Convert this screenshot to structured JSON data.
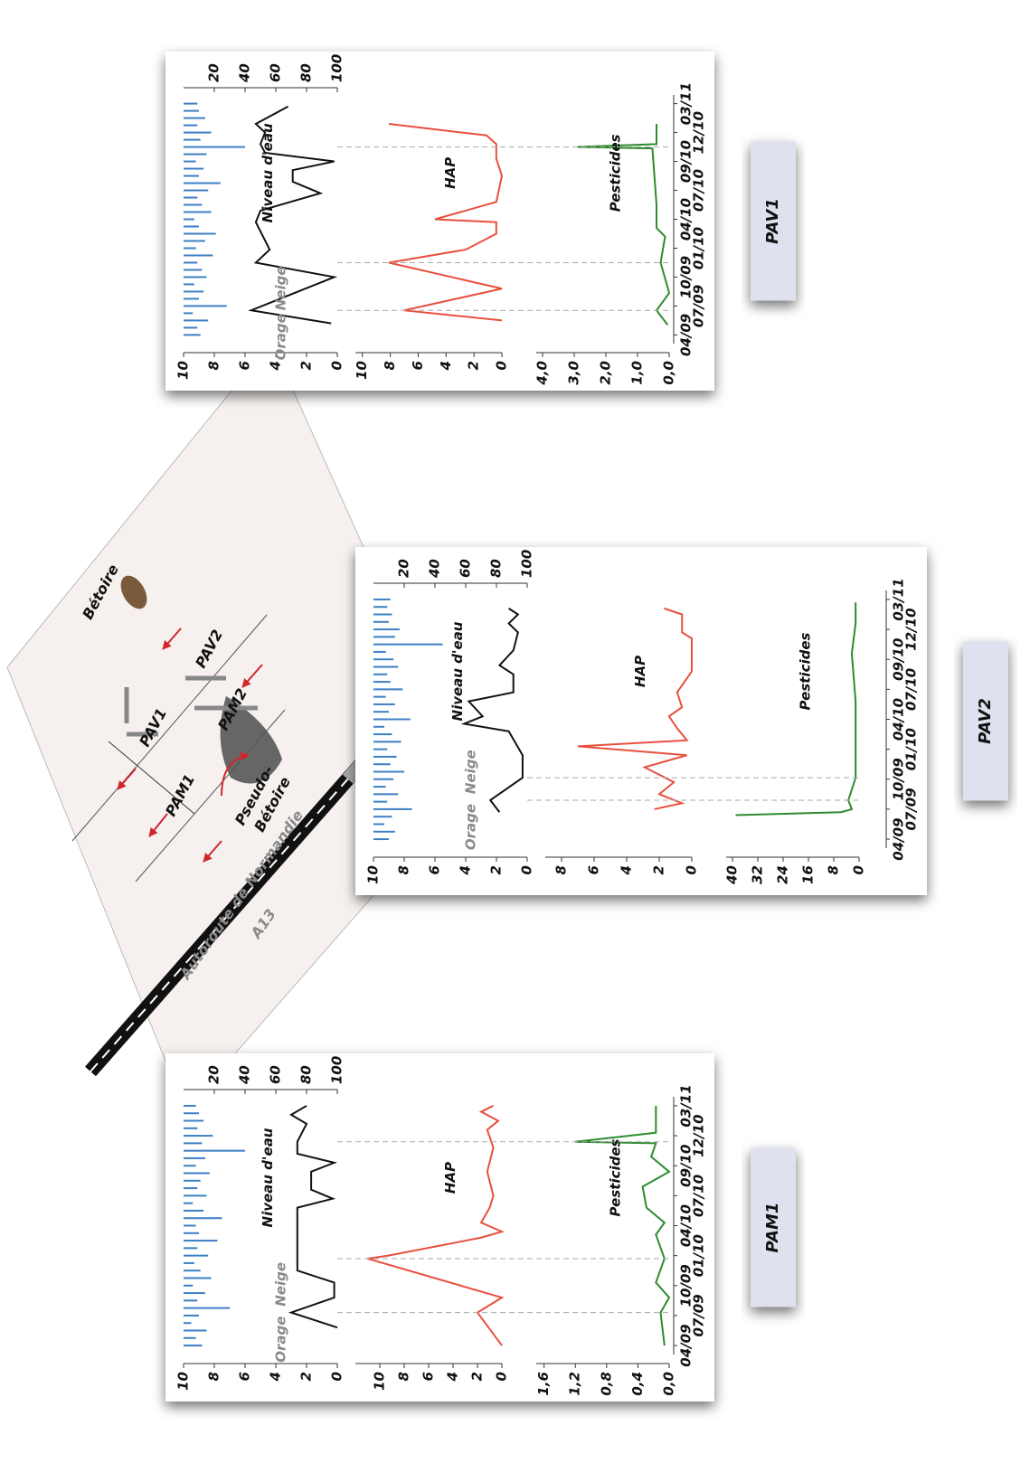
{
  "diagram": {
    "labels": [
      "Bétoire",
      "PAV1",
      "PAV2",
      "PAM1",
      "PAM2",
      "Pseudo-",
      "Bétoire",
      "Autoroute de Normandie",
      "A13"
    ]
  },
  "chart_data": [
    {
      "type": "line",
      "title": "PAM1",
      "xlim": [
        -0.3,
        8.3
      ],
      "xticks": [
        {
          "value": 0,
          "label": "04/09"
        },
        {
          "value": 1,
          "label": "07/09"
        },
        {
          "value": 2,
          "label": "10/09"
        },
        {
          "value": 3,
          "label": "01/10"
        },
        {
          "value": 4,
          "label": "04/10"
        },
        {
          "value": 5,
          "label": "07/10"
        },
        {
          "value": 6,
          "label": "09/10"
        },
        {
          "value": 7,
          "label": "12/10"
        },
        {
          "value": 8,
          "label": "03/11"
        }
      ],
      "precipitation": {
        "color": "#3d7fc4",
        "ylim": [
          0,
          100
        ],
        "yticks": [
          20,
          40,
          60,
          80,
          100
        ],
        "x": [
          0,
          0.25,
          0.5,
          0.75,
          1,
          1.25,
          1.5,
          1.75,
          2,
          2.25,
          2.5,
          2.75,
          3,
          3.25,
          3.5,
          3.75,
          4,
          4.25,
          4.5,
          4.75,
          5,
          5.25,
          5.5,
          5.75,
          6,
          6.25,
          6.5,
          6.75,
          7,
          7.25,
          7.5,
          7.75,
          8
        ],
        "values": [
          12,
          8,
          15,
          5,
          10,
          30,
          9,
          14,
          6,
          18,
          11,
          7,
          16,
          9,
          22,
          10,
          8,
          25,
          13,
          6,
          15,
          9,
          11,
          17,
          8,
          14,
          40,
          12,
          19,
          9,
          13,
          10,
          8
        ]
      },
      "series": [
        {
          "name": "Niveau d'eau",
          "color": "#111111",
          "ylim": [
            0,
            10
          ],
          "yticks": [
            0,
            2,
            4,
            6,
            8,
            10
          ],
          "x": [
            0.6,
            1.1,
            1.6,
            2.1,
            2.5,
            3.3,
            4.6,
            4.9,
            5.2,
            5.8,
            6.1,
            6.4,
            6.8,
            7.4,
            7.7,
            8.0
          ],
          "values": [
            0,
            3,
            0.2,
            0.2,
            2.6,
            2.6,
            2.6,
            0.3,
            1.7,
            1.7,
            0.2,
            2.6,
            2.6,
            2,
            3,
            2
          ]
        },
        {
          "name": "HAP",
          "color": "#e8503f",
          "ylim": [
            0,
            12
          ],
          "yticks": [
            0,
            2,
            4,
            6,
            8,
            10
          ],
          "x": [
            0,
            1.1,
            1.6,
            2.9,
            3.0,
            3.6,
            3.8,
            4.1,
            4.6,
            5.0,
            5.8,
            6.6,
            7.2,
            7.5,
            7.8,
            8.0
          ],
          "values": [
            0,
            2,
            0,
            11,
            9.3,
            1.7,
            0,
            1.7,
            1,
            0.7,
            1.2,
            0.7,
            1.2,
            0.3,
            1.7,
            0.7
          ]
        },
        {
          "name": "Pesticides",
          "color": "#2e8b2e",
          "ylim": [
            0,
            1.7
          ],
          "yticks": [
            {
              "value": 0,
              "label": "0,0"
            },
            {
              "value": 0.4,
              "label": "0,4"
            },
            {
              "value": 0.8,
              "label": "0,8"
            },
            {
              "value": 1.2,
              "label": "1,2"
            },
            {
              "value": 1.6,
              "label": "1,6"
            }
          ],
          "x": [
            0,
            1.1,
            1.6,
            2.1,
            2.9,
            3.7,
            4.1,
            4.6,
            5.3,
            5.8,
            6.3,
            6.75,
            6.8,
            7.1,
            8.0
          ],
          "values": [
            0.06,
            0.11,
            0,
            0.17,
            0.06,
            0.17,
            0.06,
            0.29,
            0.34,
            0,
            0.23,
            0.17,
            1.2,
            0.17,
            0.17
          ]
        }
      ],
      "event_lines": [
        1.1,
        2.9,
        6.8
      ],
      "annotations": [
        {
          "text": "Orage",
          "x": 1.1
        },
        {
          "text": "Neige",
          "x": 2.9
        }
      ]
    },
    {
      "type": "line",
      "title": "PAV2",
      "xlim": [
        -0.3,
        8.3
      ],
      "xticks": [
        {
          "value": 0,
          "label": "04/09"
        },
        {
          "value": 1,
          "label": "07/09"
        },
        {
          "value": 2,
          "label": "10/09"
        },
        {
          "value": 3,
          "label": "01/10"
        },
        {
          "value": 4,
          "label": "04/10"
        },
        {
          "value": 5,
          "label": "07/10"
        },
        {
          "value": 6,
          "label": "09/10"
        },
        {
          "value": 7,
          "label": "12/10"
        },
        {
          "value": 8,
          "label": "03/11"
        }
      ],
      "precipitation": {
        "color": "#3d7fc4",
        "ylim": [
          0,
          100
        ],
        "yticks": [
          20,
          40,
          60,
          80,
          100
        ],
        "x": [
          0,
          0.25,
          0.5,
          0.75,
          1,
          1.25,
          1.5,
          1.75,
          2,
          2.25,
          2.5,
          2.75,
          3,
          3.25,
          3.5,
          3.75,
          4,
          4.25,
          4.5,
          4.75,
          5,
          5.25,
          5.5,
          5.75,
          6,
          6.25,
          6.5,
          6.75,
          7,
          7.25,
          7.5,
          7.75,
          8
        ],
        "values": [
          10,
          14,
          7,
          12,
          25,
          9,
          16,
          8,
          13,
          20,
          11,
          15,
          9,
          18,
          12,
          7,
          24,
          10,
          14,
          8,
          19,
          11,
          9,
          16,
          13,
          8,
          45,
          14,
          17,
          10,
          12,
          9,
          11
        ]
      },
      "series": [
        {
          "name": "Niveau d'eau",
          "color": "#111111",
          "ylim": [
            0,
            10
          ],
          "yticks": [
            0,
            2,
            4,
            6,
            8,
            10
          ],
          "x": [
            0.9,
            1.3,
            2.05,
            2.8,
            3.6,
            3.85,
            4.1,
            4.6,
            4.9,
            5.5,
            5.8,
            6.3,
            6.9,
            7.2,
            7.5,
            7.7
          ],
          "values": [
            1.8,
            2.4,
            0.3,
            0.3,
            1.2,
            4.1,
            2.9,
            3.8,
            0.9,
            0.9,
            1.8,
            0.9,
            0.6,
            1.2,
            0.6,
            1.2
          ]
        },
        {
          "name": "HAP",
          "color": "#e8503f",
          "ylim": [
            0,
            9
          ],
          "yticks": [
            0,
            2,
            4,
            6,
            8
          ],
          "x": [
            1.0,
            1.2,
            1.5,
            1.9,
            2.4,
            2.8,
            3.1,
            3.3,
            3.7,
            4.1,
            4.4,
            4.9,
            5.6,
            6.7,
            6.9,
            7.5,
            7.7
          ],
          "values": [
            2.3,
            0.6,
            2,
            1.1,
            2.9,
            0.3,
            7,
            0.3,
            0.9,
            1.4,
            0.6,
            0.9,
            0,
            0,
            0.6,
            0.6,
            1.7
          ]
        },
        {
          "name": "Pesticides",
          "color": "#2e8b2e",
          "ylim": [
            0,
            42
          ],
          "yticks": [
            0,
            8,
            16,
            24,
            32,
            40
          ],
          "x": [
            0.8,
            0.9,
            1.0,
            1.3,
            2.05,
            4.6,
            6.2,
            7.2,
            7.9
          ],
          "values": [
            39,
            5.7,
            2.3,
            3.4,
            1.1,
            1.1,
            2.3,
            1.1,
            1.1
          ]
        }
      ],
      "event_lines": [
        1.3,
        2.05
      ],
      "annotations": [
        {
          "text": "Orage",
          "x": 1.3
        },
        {
          "text": "Neige",
          "x": 3.1
        }
      ]
    },
    {
      "type": "line",
      "title": "PAV1",
      "xlim": [
        -0.3,
        8.3
      ],
      "xticks": [
        {
          "value": 0,
          "label": "04/09"
        },
        {
          "value": 1,
          "label": "07/09"
        },
        {
          "value": 2,
          "label": "10/09"
        },
        {
          "value": 3,
          "label": "01/10"
        },
        {
          "value": 4,
          "label": "04/10"
        },
        {
          "value": 5,
          "label": "07/10"
        },
        {
          "value": 6,
          "label": "09/10"
        },
        {
          "value": 7,
          "label": "12/10"
        },
        {
          "value": 8,
          "label": "03/11"
        }
      ],
      "precipitation": {
        "color": "#3d7fc4",
        "ylim": [
          0,
          100
        ],
        "yticks": [
          20,
          40,
          60,
          80,
          100
        ],
        "x": [
          0,
          0.25,
          0.5,
          0.75,
          1,
          1.25,
          1.5,
          1.75,
          2,
          2.25,
          2.5,
          2.75,
          3,
          3.25,
          3.5,
          3.75,
          4,
          4.25,
          4.5,
          4.75,
          5,
          5.25,
          5.5,
          5.75,
          6,
          6.25,
          6.5,
          6.75,
          7,
          7.25,
          7.5,
          7.75,
          8
        ],
        "values": [
          11,
          9,
          16,
          6,
          28,
          10,
          13,
          7,
          15,
          12,
          9,
          19,
          8,
          14,
          21,
          10,
          7,
          18,
          12,
          9,
          16,
          24,
          10,
          13,
          8,
          15,
          40,
          11,
          18,
          9,
          14,
          10,
          9
        ]
      },
      "series": [
        {
          "name": "Niveau d'eau",
          "color": "#111111",
          "ylim": [
            0,
            10
          ],
          "yticks": [
            0,
            2,
            4,
            6,
            8,
            10
          ],
          "x": [
            0.4,
            0.85,
            2.0,
            2.5,
            2.95,
            3.9,
            4.3,
            4.9,
            5.3,
            5.7,
            6.0,
            6.3,
            6.6,
            7.0,
            7.3,
            7.9
          ],
          "values": [
            0.4,
            5.6,
            0.2,
            5.3,
            4.4,
            5.3,
            5,
            1.1,
            2.9,
            2.9,
            0.2,
            4.7,
            5,
            4.7,
            5.3,
            3.2
          ]
        },
        {
          "name": "HAP",
          "color": "#e8503f",
          "ylim": [
            0,
            10.5
          ],
          "yticks": [
            0,
            2,
            4,
            6,
            8,
            10
          ],
          "x": [
            0.5,
            0.85,
            1.6,
            2.5,
            2.95,
            3.5,
            3.9,
            4.0,
            4.6,
            5.5,
            6.1,
            6.6,
            6.9,
            7.3
          ],
          "values": [
            0,
            7,
            0,
            8.1,
            2.6,
            0.4,
            0.4,
            4.8,
            0.4,
            0,
            0.4,
            0.4,
            1.1,
            8.1
          ]
        },
        {
          "name": "Pesticides",
          "color": "#2e8b2e",
          "ylim": [
            0,
            4.2
          ],
          "yticks": [
            {
              "value": 0,
              "label": "0,0"
            },
            {
              "value": 1,
              "label": "1,0"
            },
            {
              "value": 2,
              "label": "2,0"
            },
            {
              "value": 3,
              "label": "3,0"
            },
            {
              "value": 4,
              "label": "4,0"
            }
          ],
          "x": [
            0.35,
            0.85,
            1.45,
            2.5,
            3.4,
            3.7,
            4.5,
            6.45,
            6.5,
            6.6,
            7.3
          ],
          "values": [
            0.05,
            0.4,
            0,
            0.27,
            0.13,
            0.4,
            0.4,
            0.53,
            2.9,
            0.4,
            0.4
          ]
        }
      ],
      "event_lines": [
        0.85,
        2.5,
        6.5
      ],
      "annotations": [
        {
          "text": "Orage",
          "x": 0.85
        },
        {
          "text": "Neige",
          "x": 2.5
        }
      ]
    }
  ]
}
